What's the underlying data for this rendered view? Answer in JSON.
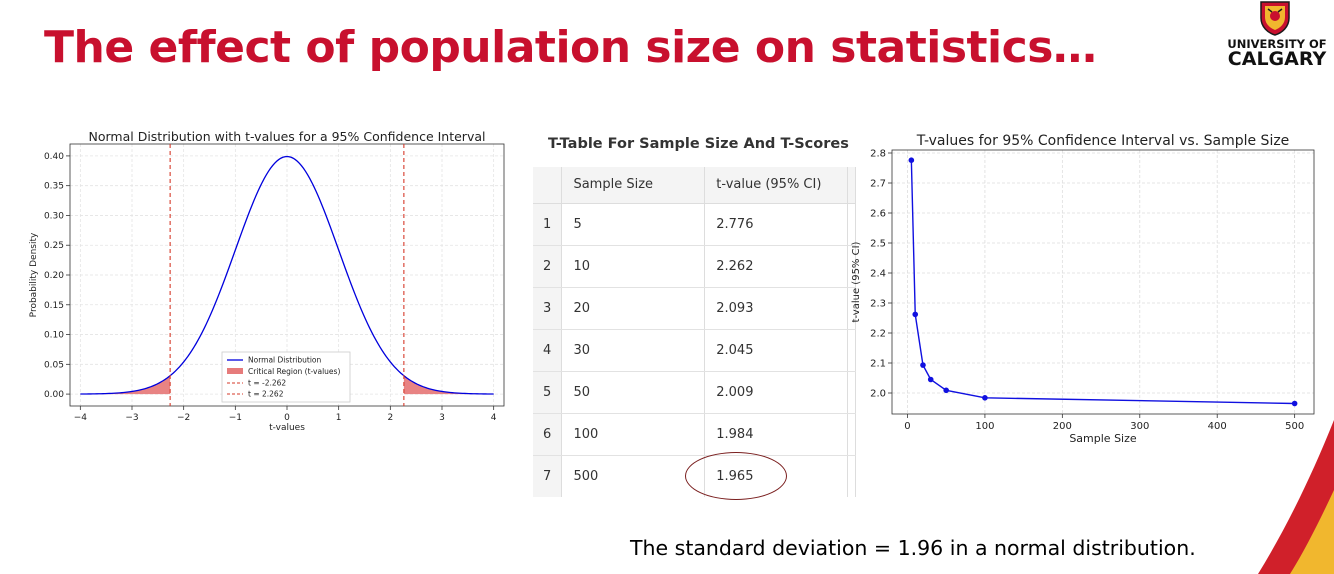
{
  "slide": {
    "title": "The effect of population size on statistics…",
    "footer": "The standard deviation = 1.96 in a normal distribution."
  },
  "logo": {
    "line1": "UNIVERSITY OF",
    "line2": "CALGARY",
    "crest_icon": "university-crest-icon"
  },
  "colors": {
    "title_red": "#c8102e",
    "curve_blue": "#0000dd",
    "critical_red": "#e05a5a",
    "dashed_red": "#d63a2a",
    "point_blue": "#1010e0",
    "oval": "#7a1f1f",
    "corner_red": "#d0202a",
    "corner_gold": "#f1b72e"
  },
  "table": {
    "title": "T-Table For Sample Size And T-Scores",
    "headers": [
      "Sample Size",
      "t-value (95% CI)"
    ],
    "rows": [
      {
        "index": "1",
        "n": "5",
        "t": "2.776"
      },
      {
        "index": "2",
        "n": "10",
        "t": "2.262"
      },
      {
        "index": "3",
        "n": "20",
        "t": "2.093"
      },
      {
        "index": "4",
        "n": "30",
        "t": "2.045"
      },
      {
        "index": "5",
        "n": "50",
        "t": "2.009"
      },
      {
        "index": "6",
        "n": "100",
        "t": "1.984"
      },
      {
        "index": "7",
        "n": "500",
        "t": "1.965"
      }
    ],
    "highlighted_row": 7
  },
  "chart_data": [
    {
      "type": "area",
      "title": "Normal Distribution with t-values for a 95% Confidence Interval",
      "xlabel": "t-values",
      "ylabel": "Probability Density",
      "xlim": [
        -4.2,
        4.2
      ],
      "ylim": [
        -0.02,
        0.42
      ],
      "xticks": [
        -4,
        -3,
        -2,
        -1,
        0,
        1,
        2,
        3,
        4
      ],
      "xtick_labels": [
        "−4",
        "−3",
        "−2",
        "−1",
        "0",
        "1",
        "2",
        "3",
        "4"
      ],
      "yticks": [
        0.0,
        0.05,
        0.1,
        0.15,
        0.2,
        0.25,
        0.3,
        0.35,
        0.4
      ],
      "ytick_labels": [
        "0.00",
        "0.05",
        "0.10",
        "0.15",
        "0.20",
        "0.25",
        "0.30",
        "0.35",
        "0.40"
      ],
      "grid": true,
      "curve": {
        "name": "Normal Distribution",
        "function": "standard normal pdf",
        "x_range": [
          -4,
          4
        ]
      },
      "critical_regions": {
        "name": "Critical Region (t-values)",
        "left": [
          -4,
          -2.262
        ],
        "right": [
          2.262,
          4
        ]
      },
      "vlines": [
        {
          "name": "t = -2.262",
          "x": -2.262
        },
        {
          "name": "t = 2.262",
          "x": 2.262
        }
      ],
      "legend_position": "lower-center"
    },
    {
      "type": "line",
      "title": "T-values for 95% Confidence Interval vs. Sample Size",
      "xlabel": "Sample Size",
      "ylabel": "t-value (95% CI)",
      "xlim": [
        -20,
        525
      ],
      "ylim": [
        1.93,
        2.81
      ],
      "xticks": [
        0,
        100,
        200,
        300,
        400,
        500
      ],
      "xtick_labels": [
        "0",
        "100",
        "200",
        "300",
        "400",
        "500"
      ],
      "yticks": [
        2.0,
        2.1,
        2.2,
        2.3,
        2.4,
        2.5,
        2.6,
        2.7,
        2.8
      ],
      "ytick_labels": [
        "2.0",
        "2.1",
        "2.2",
        "2.3",
        "2.4",
        "2.5",
        "2.6",
        "2.7",
        "2.8"
      ],
      "grid": true,
      "x": [
        5,
        10,
        20,
        30,
        50,
        100,
        500
      ],
      "y": [
        2.776,
        2.262,
        2.093,
        2.045,
        2.009,
        1.984,
        1.965
      ]
    }
  ]
}
